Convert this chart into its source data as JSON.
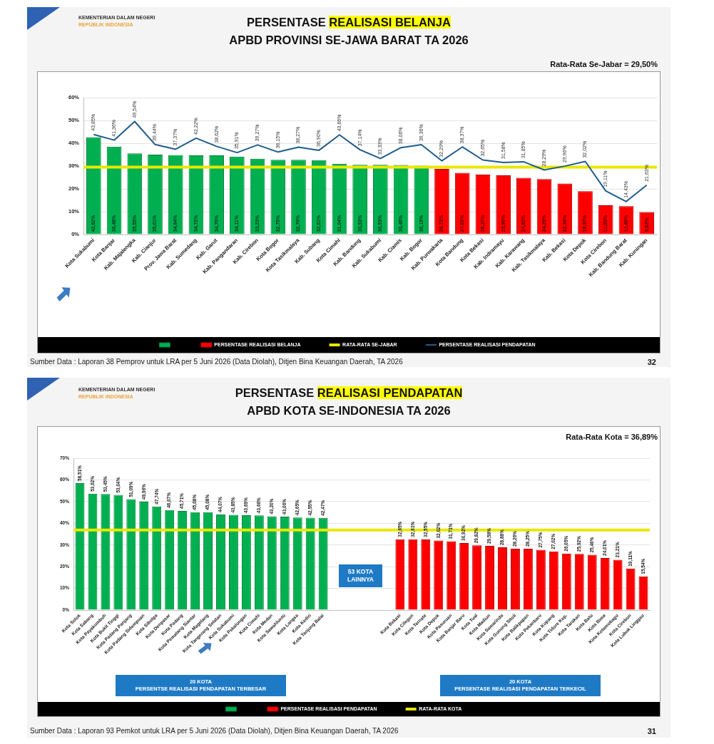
{
  "chart_data": [
    {
      "type": "bar",
      "title": "PERSENTASE REALISASI BELANJA",
      "subtitle": "APBD PROVINSI SE-JAWA BARAT TA 2026",
      "categories": [
        "Kota Sukabumi",
        "Kota Banjar",
        "Kab. Majalengka",
        "Kab. Cianjur",
        "Prov. Jawa Barat",
        "Kab. Sumedang",
        "Kab. Garut",
        "Kab. Pangandaran",
        "Kab. Cirebon",
        "Kota Bogor",
        "Kota Tasikmalaya",
        "Kab. Subang",
        "Kota Cimahi",
        "Kab. Bandung",
        "Kab. Sukabumi",
        "Kab. Ciamis",
        "Kab. Bogor",
        "Kab. Purwakarta",
        "Kota Bandung",
        "Kota Bekasi",
        "Kab. Indramayu",
        "Kab. Karawang",
        "Kab. Tasikmalaya",
        "Kab. Bekasi",
        "Kota Depok",
        "Kota Cirebon",
        "Kab. Bandung Barat",
        "Kab. Kuningan"
      ],
      "series": [
        {
          "color": "#00b050",
          "values": [
            42.62,
            38.48,
            35.55,
            35.01,
            34.84,
            34.72,
            34.7,
            34.11,
            33.23,
            32.75,
            32.7,
            32.61,
            31.04,
            30.53,
            30.53,
            30.46,
            30.19,
            null,
            null,
            null,
            null,
            null,
            null,
            null,
            null,
            null,
            null,
            null
          ],
          "value_labels": [
            "42,62%",
            "38,48%",
            "35,55%",
            "35,01%",
            "34,84%",
            "34,72%",
            "34,70%",
            "34,11%",
            "33,23%",
            "32,75%",
            "32,70%",
            "32,61%",
            "31,04%",
            "30,53%",
            "30,53%",
            "30,46%",
            "30,19%",
            null,
            null,
            null,
            null,
            null,
            null,
            null,
            null,
            null,
            null,
            null
          ]
        },
        {
          "name": "PERSENTASE REALISASI BELANJA",
          "color": "#ff0000",
          "values": [
            null,
            null,
            null,
            null,
            null,
            null,
            null,
            null,
            null,
            null,
            null,
            null,
            null,
            null,
            null,
            null,
            null,
            28.72,
            27.03,
            26.27,
            25.9,
            24.83,
            24.29,
            22.36,
            18.97,
            12.83,
            12.46,
            9.82
          ],
          "value_labels": [
            null,
            null,
            null,
            null,
            null,
            null,
            null,
            null,
            null,
            null,
            null,
            null,
            null,
            null,
            null,
            null,
            null,
            "28,72%",
            "27,03%",
            "26,27%",
            "25,90%",
            "24,83%",
            "24,29%",
            "22,36%",
            "18,97%",
            "12,83%",
            "12,46%",
            "9,82%"
          ]
        },
        {
          "name": "PERSENTASE REALISASI PENDAPATAN",
          "type": "line",
          "color": "#1f5c8c",
          "values": [
            43.85,
            41.36,
            49.54,
            39.44,
            37.37,
            42.22,
            38.62,
            35.91,
            39.27,
            36.15,
            38.27,
            36.9,
            43.66,
            37.14,
            33.33,
            38.06,
            39.36,
            32.29,
            38.37,
            32.65,
            31.58,
            31.85,
            28.29,
            29.96,
            32.02,
            19.11,
            14.43,
            21.63
          ],
          "value_labels": [
            "43,85%",
            "41,36%",
            "49,54%",
            "39,44%",
            "37,37%",
            "42,22%",
            "38,62%",
            "35,91%",
            "39,27%",
            "36,15%",
            "38,27%",
            "36,90%",
            "43,66%",
            "37,14%",
            "33,33%",
            "38,06%",
            "39,36%",
            "32,29%",
            "38,37%",
            "32,65%",
            "31,58%",
            "31,85%",
            "28,29%",
            "29,96%",
            "32,02%",
            "19,11%",
            "14,43%",
            "21,63%"
          ]
        }
      ],
      "ref_lines": [
        {
          "axis": "y",
          "value": 29.5,
          "label": "RATA-RATA SE-JABAR",
          "color": "#e8e800"
        }
      ],
      "ylim": [
        0,
        60
      ],
      "yticks": [
        {
          "value": 0,
          "label": "0%"
        },
        {
          "value": 10,
          "label": "10%"
        },
        {
          "value": 20,
          "label": "20%"
        },
        {
          "value": 30,
          "label": "30%"
        },
        {
          "value": 40,
          "label": "40%"
        },
        {
          "value": 50,
          "label": "50%"
        },
        {
          "value": 60,
          "label": "60%"
        }
      ],
      "grid": "y",
      "legend": "bottom",
      "annotations": [
        "KEMENTERIAN DALAM NEGERI",
        "REPUBLIK INDONESIA",
        "Rata-Rata Se-Jabar = 29,50%",
        "Sumber Data : Laporan 38 Pemprov untuk LRA per 5 Juni 2026 (Data Diolah), Ditjen Bina Keuangan Daerah, TA 2026",
        "32"
      ]
    },
    {
      "type": "bar",
      "title": "PERSENTASE REALISASI PENDAPATAN",
      "subtitle": "APBD KOTA SE-INDONESIA TA 2026",
      "categories": [
        "Kota Solok",
        "Kota Sabang",
        "Kota Payakumbuh",
        "Kota Bukit Tinggi",
        "Kota Padang Panjang",
        "Kota Padang Sidempuan",
        "Kota Sibolga",
        "Kota Denpasar",
        "Kota Padang",
        "Kota Pematang Siantar",
        "Kota Magelang",
        "Kota Tangerang Selatan",
        "Kota Sukabumi",
        "Kota Pekalongan",
        "Kota Cimahi",
        "Kota Medan",
        "Kota Sawahlunto",
        "Kota Langsa",
        "Kota Kediri",
        "Kota Tanjung Balai",
        null,
        null,
        null,
        null,
        null,
        "Kota Bekasi",
        "Kota Cilegon",
        "Kota Ternate",
        "Kota Depok",
        "Kota Pasuruan",
        "Kota Banjar Baru",
        "Kota Tual",
        "Kota Madiun",
        "Kota Samarinda",
        "Kota Gunung Sitoli",
        "Kota Balikpapan",
        "Kota Pekanbaru",
        "Kota Kupang",
        "Kota Tidore Kep.",
        "Kota Tarakan",
        "Kota Batu",
        "Kota Bima",
        "Kota Kotamobagu",
        "Kota Cirebon",
        "Kota Lubuk Linggau"
      ],
      "series": [
        {
          "color": "#00b050",
          "values": [
            58.51,
            53.62,
            53.45,
            53.04,
            51.09,
            49.96,
            47.74,
            46.07,
            45.71,
            45.08,
            45.08,
            44.07,
            43.85,
            43.69,
            43.66,
            43.2,
            43.06,
            42.65,
            42.55,
            42.47,
            null,
            null,
            null,
            null,
            null,
            null,
            null,
            null,
            null,
            null,
            null,
            null,
            null,
            null,
            null,
            null,
            null,
            null,
            null,
            null,
            null,
            null,
            null,
            null,
            null
          ],
          "value_labels": [
            "58,51%",
            "53,62%",
            "53,45%",
            "53,04%",
            "51,09%",
            "49,96%",
            "47,74%",
            "46,07%",
            "45,71%",
            "45,08%",
            "45,08%",
            "44,07%",
            "43,85%",
            "43,69%",
            "43,66%",
            "43,20%",
            "43,06%",
            "42,65%",
            "42,55%",
            "42,47%",
            null,
            null,
            null,
            null,
            null,
            null,
            null,
            null,
            null,
            null,
            null,
            null,
            null,
            null,
            null,
            null,
            null,
            null,
            null,
            null,
            null,
            null,
            null,
            null,
            null
          ]
        },
        {
          "name": "PERSENTASE REALISASI PENDAPATAN",
          "color": "#ff0000",
          "values": [
            null,
            null,
            null,
            null,
            null,
            null,
            null,
            null,
            null,
            null,
            null,
            null,
            null,
            null,
            null,
            null,
            null,
            null,
            null,
            null,
            null,
            null,
            null,
            null,
            null,
            32.65,
            32.61,
            32.55,
            32.02,
            31.71,
            30.92,
            29.82,
            29.58,
            28.88,
            28.26,
            28.25,
            27.75,
            27.02,
            26.05,
            25.92,
            25.46,
            24.01,
            23.21,
            19.11,
            15.54
          ],
          "value_labels": [
            null,
            null,
            null,
            null,
            null,
            null,
            null,
            null,
            null,
            null,
            null,
            null,
            null,
            null,
            null,
            null,
            null,
            null,
            null,
            null,
            null,
            null,
            null,
            null,
            null,
            "32,65%",
            "32,61%",
            "32,55%",
            "32,02%",
            "31,71%",
            "30,92%",
            "29,82%",
            "29,58%",
            "28,88%",
            "28,26%",
            "28,25%",
            "27,75%",
            "27,02%",
            "26,05%",
            "25,92%",
            "25,46%",
            "24,01%",
            "23,21%",
            "19,11%",
            "15,54%"
          ]
        }
      ],
      "ref_lines": [
        {
          "axis": "y",
          "value": 36.89,
          "label": "RATA-RATA KOTA",
          "color": "#e8e800"
        }
      ],
      "ylim": [
        0,
        70
      ],
      "yticks": [
        {
          "value": 0,
          "label": "0%"
        },
        {
          "value": 10,
          "label": "10%"
        },
        {
          "value": 20,
          "label": "20%"
        },
        {
          "value": 30,
          "label": "30%"
        },
        {
          "value": 40,
          "label": "40%"
        },
        {
          "value": 50,
          "label": "50%"
        },
        {
          "value": 60,
          "label": "60%"
        },
        {
          "value": 70,
          "label": "70%"
        }
      ],
      "grid": "y",
      "legend": "bottom",
      "annotations": [
        "KEMENTERIAN DALAM NEGERI",
        "REPUBLIK INDONESIA",
        "Rata-Rata Kota = 36,89%",
        "Sumber Data : Laporan 93 Pemkot untuk LRA per 5 Juni 2026 (Data Diolah), Ditjen Bina Keuangan Daerah, TA 2026",
        "31",
        "53 KOTA\nLAINNYA",
        "20 KOTA\nPERSENTSE REALISASI PENDAPATAN TERBESAR",
        "20 KOTA\nPERSENTASE REALISASI PENDAPATAN TERKECIL"
      ]
    }
  ]
}
